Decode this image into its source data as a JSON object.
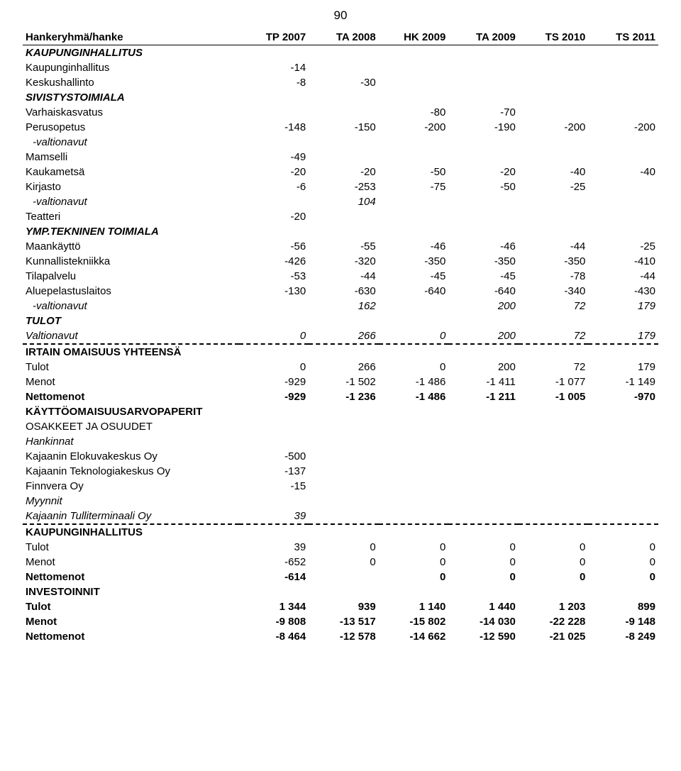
{
  "page_number": "90",
  "columns": [
    "Hankeryhmä/hanke",
    "TP 2007",
    "TA 2008",
    "HK 2009",
    "TA 2009",
    "TS 2010",
    "TS 2011"
  ],
  "styling": {
    "font_family": "Arial",
    "font_size_pt": 11,
    "page_number_font_size_pt": 13,
    "text_color": "#000000",
    "background_color": "#ffffff",
    "header_border": "1.5px solid #000000",
    "section_divider_style": "dash-dot",
    "col_widths_pct": [
      34,
      11,
      11,
      11,
      11,
      11,
      11
    ],
    "number_align": "right",
    "label_align": "left"
  },
  "rows": [
    {
      "label": "KAUPUNGINHALLITUS",
      "values": [
        "",
        "",
        "",
        "",
        "",
        ""
      ],
      "style": [
        "bold",
        "italic"
      ]
    },
    {
      "label": "Kaupunginhallitus",
      "values": [
        "-14",
        "",
        "",
        "",
        "",
        ""
      ]
    },
    {
      "label": "Keskushallinto",
      "values": [
        "-8",
        "-30",
        "",
        "",
        "",
        ""
      ]
    },
    {
      "label": "SIVISTYSTOIMIALA",
      "values": [
        "",
        "",
        "",
        "",
        "",
        ""
      ],
      "style": [
        "bold",
        "italic"
      ]
    },
    {
      "label": "Varhaiskasvatus",
      "values": [
        "",
        "",
        "-80",
        "-70",
        "",
        ""
      ]
    },
    {
      "label": "Perusopetus",
      "values": [
        "-148",
        "-150",
        "-200",
        "-190",
        "-200",
        "-200"
      ]
    },
    {
      "label": "-valtionavut",
      "values": [
        "",
        "",
        "",
        "",
        "",
        ""
      ],
      "style": [
        "italic",
        "indent2"
      ]
    },
    {
      "label": "Mamselli",
      "values": [
        "-49",
        "",
        "",
        "",
        "",
        ""
      ]
    },
    {
      "label": "Kaukametsä",
      "values": [
        "-20",
        "-20",
        "-50",
        "-20",
        "-40",
        "-40"
      ]
    },
    {
      "label": "Kirjasto",
      "values": [
        "-6",
        "-253",
        "-75",
        "-50",
        "-25",
        ""
      ]
    },
    {
      "label": "-valtionavut",
      "values": [
        "",
        "104",
        "",
        "",
        "",
        ""
      ],
      "style": [
        "italic",
        "indent2"
      ]
    },
    {
      "label": "Teatteri",
      "values": [
        "-20",
        "",
        "",
        "",
        "",
        ""
      ]
    },
    {
      "label": "YMP.TEKNINEN TOIMIALA",
      "values": [
        "",
        "",
        "",
        "",
        "",
        ""
      ],
      "style": [
        "bold",
        "italic"
      ]
    },
    {
      "label": "Maankäyttö",
      "values": [
        "-56",
        "-55",
        "-46",
        "-46",
        "-44",
        "-25"
      ]
    },
    {
      "label": "Kunnallistekniikka",
      "values": [
        "-426",
        "-320",
        "-350",
        "-350",
        "-350",
        "-410"
      ]
    },
    {
      "label": "Tilapalvelu",
      "values": [
        "-53",
        "-44",
        "-45",
        "-45",
        "-78",
        "-44"
      ]
    },
    {
      "label": "Aluepelastuslaitos",
      "values": [
        "-130",
        "-630",
        "-640",
        "-640",
        "-340",
        "-430"
      ]
    },
    {
      "label": "-valtionavut",
      "values": [
        "",
        "162",
        "",
        "200",
        "72",
        "179"
      ],
      "style": [
        "italic",
        "indent2"
      ]
    },
    {
      "label": "TULOT",
      "values": [
        "",
        "",
        "",
        "",
        "",
        ""
      ],
      "style": [
        "bold",
        "italic"
      ]
    },
    {
      "label": "Valtionavut",
      "values": [
        "0",
        "266",
        "0",
        "200",
        "72",
        "179"
      ],
      "style": [
        "italic",
        "dashdot-bottom"
      ]
    },
    {
      "label": "IRTAIN OMAISUUS YHTEENSÄ",
      "values": [
        "",
        "",
        "",
        "",
        "",
        ""
      ],
      "style": [
        "bold"
      ]
    },
    {
      "label": "Tulot",
      "values": [
        "0",
        "266",
        "0",
        "200",
        "72",
        "179"
      ]
    },
    {
      "label": "Menot",
      "values": [
        "-929",
        "-1 502",
        "-1 486",
        "-1 411",
        "-1 077",
        "-1 149"
      ]
    },
    {
      "label": "Nettomenot",
      "values": [
        "-929",
        "-1 236",
        "-1 486",
        "-1 211",
        "-1 005",
        "-970"
      ],
      "style": [
        "bold"
      ]
    },
    {
      "label": "KÄYTTÖOMAISUUSARVOPAPERIT",
      "values": [
        "",
        "",
        "",
        "",
        "",
        ""
      ],
      "style": [
        "bold"
      ]
    },
    {
      "label": "OSAKKEET JA OSUUDET",
      "values": [
        "",
        "",
        "",
        "",
        "",
        ""
      ]
    },
    {
      "label": "Hankinnat",
      "values": [
        "",
        "",
        "",
        "",
        "",
        ""
      ],
      "style": [
        "italic"
      ]
    },
    {
      "label": "Kajaanin Elokuvakeskus Oy",
      "values": [
        "-500",
        "",
        "",
        "",
        "",
        ""
      ]
    },
    {
      "label": "Kajaanin Teknologiakeskus Oy",
      "values": [
        "-137",
        "",
        "",
        "",
        "",
        ""
      ]
    },
    {
      "label": "Finnvera Oy",
      "values": [
        "-15",
        "",
        "",
        "",
        "",
        ""
      ]
    },
    {
      "label": "Myynnit",
      "values": [
        "",
        "",
        "",
        "",
        "",
        ""
      ],
      "style": [
        "italic"
      ]
    },
    {
      "label": "Kajaanin Tulliterminaali Oy",
      "values": [
        "39",
        "",
        "",
        "",
        "",
        ""
      ],
      "style": [
        "italic",
        "dashdot-bottom"
      ]
    },
    {
      "label": "KAUPUNGINHALLITUS",
      "values": [
        "",
        "",
        "",
        "",
        "",
        ""
      ],
      "style": [
        "bold"
      ]
    },
    {
      "label": "Tulot",
      "values": [
        "39",
        "0",
        "0",
        "0",
        "0",
        "0"
      ]
    },
    {
      "label": "Menot",
      "values": [
        "-652",
        "0",
        "0",
        "0",
        "0",
        "0"
      ]
    },
    {
      "label": "Nettomenot",
      "values": [
        "-614",
        "",
        "0",
        "0",
        "0",
        "0"
      ],
      "style": [
        "bold"
      ]
    },
    {
      "label": "INVESTOINNIT",
      "values": [
        "",
        "",
        "",
        "",
        "",
        ""
      ],
      "style": [
        "bold"
      ]
    },
    {
      "label": "Tulot",
      "values": [
        "1 344",
        "939",
        "1 140",
        "1 440",
        "1 203",
        "899"
      ],
      "style": [
        "bold"
      ]
    },
    {
      "label": "Menot",
      "values": [
        "-9 808",
        "-13 517",
        "-15 802",
        "-14 030",
        "-22 228",
        "-9 148"
      ],
      "style": [
        "bold"
      ]
    },
    {
      "label": "Nettomenot",
      "values": [
        "-8 464",
        "-12 578",
        "-14 662",
        "-12 590",
        "-21 025",
        "-8 249"
      ],
      "style": [
        "bold"
      ]
    }
  ]
}
